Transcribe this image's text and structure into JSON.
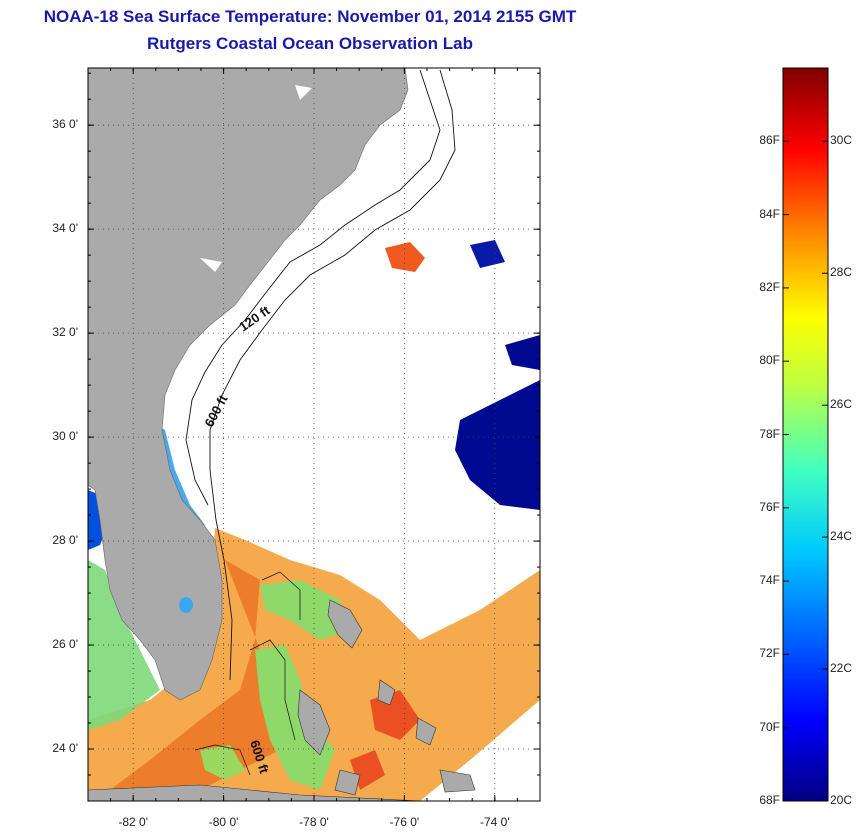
{
  "title": "NOAA-18 Sea Surface Temperature:  November 01, 2014 2155 GMT",
  "subtitle": "Rutgers Coastal Ocean Observation Lab",
  "map": {
    "lat_labels": [
      "36 0'",
      "34 0'",
      "32 0'",
      "30 0'",
      "28 0'",
      "26 0'",
      "24 0'"
    ],
    "lat_values": [
      36,
      34,
      32,
      30,
      28,
      26,
      24
    ],
    "lon_labels": [
      "-82 0'",
      "-80 0'",
      "-78 0'",
      "-76 0'",
      "-74 0'"
    ],
    "lon_values": [
      -82,
      -80,
      -78,
      -76,
      -74
    ],
    "lat_range": [
      23,
      37.1
    ],
    "lon_range": [
      -83,
      -73
    ],
    "contours": [
      {
        "label": "120 ft"
      },
      {
        "label": "600 ft"
      },
      {
        "label": "600 ft"
      }
    ],
    "land_color": "#aaaaaa",
    "grid": "dotted"
  },
  "colorbar": {
    "fahrenheit_labels": [
      "86F",
      "84F",
      "82F",
      "80F",
      "78F",
      "76F",
      "74F",
      "72F",
      "70F",
      "68F"
    ],
    "fahrenheit_values": [
      86,
      84,
      82,
      80,
      78,
      76,
      74,
      72,
      70,
      68
    ],
    "celsius_labels": [
      "30C",
      "28C",
      "26C",
      "24C",
      "22C",
      "20C"
    ],
    "celsius_values": [
      30,
      28,
      26,
      24,
      22,
      20
    ],
    "range_f": [
      68,
      88
    ],
    "colors": [
      "#000080",
      "#0000ff",
      "#0080ff",
      "#00ffff",
      "#80ff80",
      "#ffff00",
      "#ff8000",
      "#ff0000",
      "#800000"
    ]
  }
}
